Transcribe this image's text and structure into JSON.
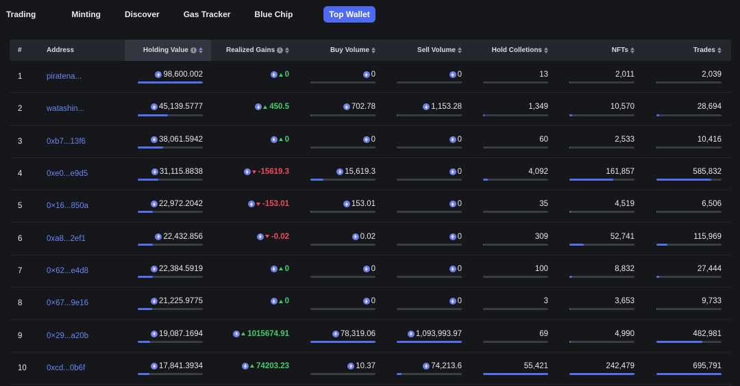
{
  "nav": {
    "tabs": [
      "Trading",
      "Minting",
      "Discover",
      "Gas Tracker",
      "Blue Chip",
      "Top Wallet"
    ],
    "active_index": 5
  },
  "colors": {
    "accent": "#4e6af0",
    "positive": "#3fcf6b",
    "negative": "#ef4a5a",
    "address": "#6a86f2"
  },
  "table": {
    "columns": {
      "num": "#",
      "address": "Address",
      "holding_value": "Holding Value",
      "realized_gains": "Realized Gains",
      "buy_volume": "Buy Volume",
      "sell_volume": "Sell Volume",
      "hold_collections": "Hold Colletions",
      "nfts": "NFTs",
      "trades": "Trades"
    },
    "rows": [
      {
        "num": "1",
        "address": "piratena...",
        "holding": "98,600.002",
        "gains": "0",
        "gains_dir": "up",
        "buy": "0",
        "sell": "0",
        "hold_col": "13",
        "nfts": "2,011",
        "trades": "2,039",
        "bars": {
          "holding": 1.0,
          "buy": 0.0,
          "sell": 0.0,
          "hold_col": 0.0,
          "nfts": 0.01,
          "trades": 0.005
        }
      },
      {
        "num": "2",
        "address": "watashin...",
        "holding": "45,139.5777",
        "gains": "450.5",
        "gains_dir": "up",
        "buy": "702.78",
        "sell": "1,153.28",
        "hold_col": "1,349",
        "nfts": "10,570",
        "trades": "28,694",
        "bars": {
          "holding": 0.46,
          "buy": 0.01,
          "sell": 0.01,
          "hold_col": 0.02,
          "nfts": 0.04,
          "trades": 0.04
        }
      },
      {
        "num": "3",
        "address": "0xb7...13f6",
        "holding": "38,061.5942",
        "gains": "0",
        "gains_dir": "up",
        "buy": "0",
        "sell": "0",
        "hold_col": "60",
        "nfts": "2,533",
        "trades": "10,416",
        "bars": {
          "holding": 0.39,
          "buy": 0.0,
          "sell": 0.0,
          "hold_col": 0.0,
          "nfts": 0.01,
          "trades": 0.015
        }
      },
      {
        "num": "4",
        "address": "0xe0...e9d5",
        "holding": "31,115.8838",
        "gains": "-15619.3",
        "gains_dir": "down",
        "buy": "15,619.3",
        "sell": "0",
        "hold_col": "4,092",
        "nfts": "161,857",
        "trades": "585,832",
        "bars": {
          "holding": 0.32,
          "buy": 0.2,
          "sell": 0.0,
          "hold_col": 0.07,
          "nfts": 0.67,
          "trades": 0.84
        }
      },
      {
        "num": "5",
        "address": "0×16...850a",
        "holding": "22,972.2042",
        "gains": "-153.01",
        "gains_dir": "down",
        "buy": "153.01",
        "sell": "0",
        "hold_col": "35",
        "nfts": "4,519",
        "trades": "6,506",
        "bars": {
          "holding": 0.23,
          "buy": 0.005,
          "sell": 0.0,
          "hold_col": 0.0,
          "nfts": 0.02,
          "trades": 0.01
        }
      },
      {
        "num": "6",
        "address": "0xa8...2ef1",
        "holding": "22,432.856",
        "gains": "-0.02",
        "gains_dir": "down",
        "buy": "0.02",
        "sell": "0",
        "hold_col": "309",
        "nfts": "52,741",
        "trades": "115,969",
        "bars": {
          "holding": 0.23,
          "buy": 0.0,
          "sell": 0.0,
          "hold_col": 0.005,
          "nfts": 0.22,
          "trades": 0.17
        }
      },
      {
        "num": "7",
        "address": "0×62...e4d8",
        "holding": "22,384.5919",
        "gains": "0",
        "gains_dir": "up",
        "buy": "0",
        "sell": "0",
        "hold_col": "100",
        "nfts": "8,832",
        "trades": "27,444",
        "bars": {
          "holding": 0.23,
          "buy": 0.0,
          "sell": 0.0,
          "hold_col": 0.0,
          "nfts": 0.04,
          "trades": 0.04
        }
      },
      {
        "num": "8",
        "address": "0×67...9e16",
        "holding": "21,225.9775",
        "gains": "0",
        "gains_dir": "up",
        "buy": "0",
        "sell": "0",
        "hold_col": "3",
        "nfts": "3,653",
        "trades": "9,733",
        "bars": {
          "holding": 0.22,
          "buy": 0.0,
          "sell": 0.0,
          "hold_col": 0.0,
          "nfts": 0.015,
          "trades": 0.014
        }
      },
      {
        "num": "9",
        "address": "0×29...a20b",
        "holding": "19,087.1694",
        "gains": "1015674.91",
        "gains_dir": "up",
        "buy": "78,319.06",
        "sell": "1,093,993.97",
        "hold_col": "69",
        "nfts": "4,990",
        "trades": "482,981",
        "bars": {
          "holding": 0.19,
          "buy": 1.0,
          "sell": 1.0,
          "hold_col": 0.0,
          "nfts": 0.02,
          "trades": 0.7
        }
      },
      {
        "num": "10",
        "address": "0xcd...0b6f",
        "holding": "17,841.3934",
        "gains": "74203.23",
        "gains_dir": "up",
        "buy": "10.37",
        "sell": "74,213.6",
        "hold_col": "55,421",
        "nfts": "242,479",
        "trades": "695,791",
        "bars": {
          "holding": 0.18,
          "buy": 0.0,
          "sell": 0.07,
          "hold_col": 1.0,
          "nfts": 1.0,
          "trades": 1.0
        }
      }
    ]
  }
}
